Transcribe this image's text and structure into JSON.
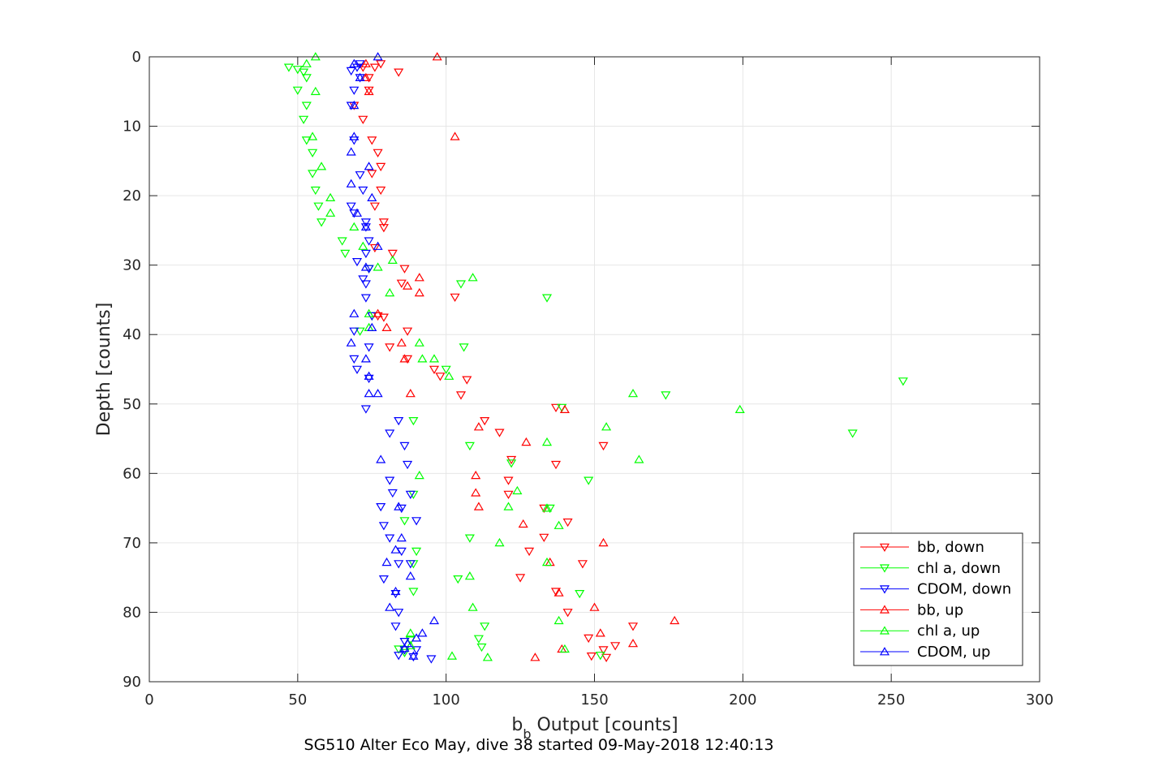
{
  "chart_data": {
    "type": "scatter",
    "title": "SG510 Alter Eco May, dive 38 started 09-May-2018 12:40:13",
    "xlabel_main": "b",
    "xlabel_sub": "b",
    "xlabel_rest": " Output [counts]",
    "ylabel": "Depth [counts]",
    "xlim": [
      0,
      300
    ],
    "ylim": [
      0,
      90
    ],
    "y_reversed": true,
    "grid": true,
    "legend_position": "bottom-right",
    "xticks": [
      "0",
      "50",
      "100",
      "150",
      "200",
      "250",
      "300"
    ],
    "yticks": [
      "0",
      "10",
      "20",
      "30",
      "40",
      "50",
      "60",
      "70",
      "80",
      "90"
    ],
    "series": [
      {
        "name": "bb, down",
        "color": "#ff0000",
        "marker": "triangle-down",
        "points": [
          [
            78,
            1
          ],
          [
            76,
            1.5
          ],
          [
            72,
            1.5
          ],
          [
            84,
            2.2
          ],
          [
            74,
            3
          ],
          [
            74,
            4.8
          ],
          [
            69,
            7
          ],
          [
            72,
            9
          ],
          [
            75,
            12
          ],
          [
            77,
            13.8
          ],
          [
            78,
            15.8
          ],
          [
            75,
            16.8
          ],
          [
            78,
            19.2
          ],
          [
            76,
            21.5
          ],
          [
            79,
            23.8
          ],
          [
            79,
            24.6
          ],
          [
            76,
            27.5
          ],
          [
            82,
            28.3
          ],
          [
            86,
            30.5
          ],
          [
            85,
            32.6
          ],
          [
            103,
            34.6
          ],
          [
            77,
            37.3
          ],
          [
            79,
            37.5
          ],
          [
            87,
            39.5
          ],
          [
            81,
            41.8
          ],
          [
            87,
            43.5
          ],
          [
            96,
            45
          ],
          [
            98,
            46
          ],
          [
            107,
            46.5
          ],
          [
            105,
            48.7
          ],
          [
            137,
            50.5
          ],
          [
            113,
            52.4
          ],
          [
            118,
            54.1
          ],
          [
            153,
            56
          ],
          [
            122,
            58
          ],
          [
            137,
            58.7
          ],
          [
            121,
            61
          ],
          [
            121,
            63
          ],
          [
            133,
            65
          ],
          [
            141,
            67
          ],
          [
            133,
            69.2
          ],
          [
            128,
            71.2
          ],
          [
            146,
            73
          ],
          [
            137,
            77
          ],
          [
            125,
            75
          ],
          [
            141,
            80
          ],
          [
            148,
            83.7
          ],
          [
            157,
            84.8
          ],
          [
            163,
            82
          ],
          [
            153,
            85.4
          ],
          [
            149,
            86.3
          ],
          [
            154,
            86.5
          ]
        ]
      },
      {
        "name": "chl a, down",
        "color": "#00ff00",
        "marker": "triangle-down",
        "points": [
          [
            47,
            1.5
          ],
          [
            50,
            1.8
          ],
          [
            52,
            2.2
          ],
          [
            53,
            3
          ],
          [
            50,
            4.8
          ],
          [
            53,
            7
          ],
          [
            52,
            9
          ],
          [
            53,
            12
          ],
          [
            55,
            13.8
          ],
          [
            55,
            16.8
          ],
          [
            56,
            19.2
          ],
          [
            57,
            21.5
          ],
          [
            58,
            23.8
          ],
          [
            65,
            26.5
          ],
          [
            66,
            28.3
          ],
          [
            74,
            30.5
          ],
          [
            105,
            32.7
          ],
          [
            134,
            34.7
          ],
          [
            75,
            37.3
          ],
          [
            71,
            39.5
          ],
          [
            106,
            41.8
          ],
          [
            100,
            45
          ],
          [
            139,
            50.5
          ],
          [
            174,
            48.7
          ],
          [
            237,
            54.2
          ],
          [
            254,
            46.7
          ],
          [
            89,
            52.4
          ],
          [
            108,
            56
          ],
          [
            122,
            58.5
          ],
          [
            148,
            61
          ],
          [
            89,
            63
          ],
          [
            135,
            65
          ],
          [
            86,
            66.8
          ],
          [
            108,
            69.3
          ],
          [
            90,
            71.2
          ],
          [
            89,
            73
          ],
          [
            104,
            75.2
          ],
          [
            145,
            77.3
          ],
          [
            89,
            77
          ],
          [
            113,
            82
          ],
          [
            111,
            83.8
          ],
          [
            112,
            85
          ],
          [
            152,
            86.2
          ],
          [
            84,
            85.3
          ],
          [
            86,
            85.8
          ],
          [
            88,
            84
          ]
        ]
      },
      {
        "name": "CDOM, down",
        "color": "#0000ff",
        "marker": "triangle-down",
        "points": [
          [
            71,
            1
          ],
          [
            70,
            1.5
          ],
          [
            68,
            2
          ],
          [
            71,
            3
          ],
          [
            69,
            4.8
          ],
          [
            68,
            7
          ],
          [
            69,
            12
          ],
          [
            71,
            17
          ],
          [
            72,
            19.2
          ],
          [
            68,
            21.5
          ],
          [
            69,
            22.5
          ],
          [
            73,
            23.8
          ],
          [
            73,
            24.5
          ],
          [
            74,
            26.5
          ],
          [
            73,
            28.3
          ],
          [
            70,
            29.5
          ],
          [
            74,
            30.5
          ],
          [
            72,
            32
          ],
          [
            73,
            32.7
          ],
          [
            73,
            34.7
          ],
          [
            75,
            37.3
          ],
          [
            69,
            39.5
          ],
          [
            74,
            41.8
          ],
          [
            69,
            43.5
          ],
          [
            70,
            45
          ],
          [
            74,
            46.3
          ],
          [
            73,
            50.7
          ],
          [
            84,
            52.4
          ],
          [
            81,
            54.2
          ],
          [
            86,
            56
          ],
          [
            87,
            58.7
          ],
          [
            81,
            61
          ],
          [
            82,
            62.8
          ],
          [
            88,
            63
          ],
          [
            78,
            64.8
          ],
          [
            85,
            65
          ],
          [
            90,
            66.8
          ],
          [
            79,
            67.5
          ],
          [
            81,
            69.3
          ],
          [
            85,
            71.2
          ],
          [
            84,
            73
          ],
          [
            88,
            73
          ],
          [
            79,
            75.2
          ],
          [
            83,
            77.3
          ],
          [
            84,
            80
          ],
          [
            83,
            82
          ],
          [
            86,
            84.2
          ],
          [
            86,
            85.4
          ],
          [
            90,
            85.4
          ],
          [
            84,
            86.2
          ],
          [
            89,
            86.4
          ],
          [
            95,
            86.7
          ]
        ]
      },
      {
        "name": "bb, up",
        "color": "#ff0000",
        "marker": "triangle-up",
        "points": [
          [
            97,
            0
          ],
          [
            73,
            1
          ],
          [
            73,
            3
          ],
          [
            74,
            5
          ],
          [
            103,
            11.5
          ],
          [
            87,
            33
          ],
          [
            91,
            31.8
          ],
          [
            91,
            34
          ],
          [
            77,
            37
          ],
          [
            80,
            39
          ],
          [
            85,
            41.2
          ],
          [
            86,
            43.5
          ],
          [
            88,
            48.5
          ],
          [
            140,
            50.8
          ],
          [
            111,
            53.3
          ],
          [
            127,
            55.5
          ],
          [
            110,
            60.3
          ],
          [
            110,
            62.8
          ],
          [
            111,
            64.8
          ],
          [
            126,
            67.3
          ],
          [
            135,
            72.8
          ],
          [
            150,
            79.3
          ],
          [
            153,
            70
          ],
          [
            177,
            81.2
          ],
          [
            152,
            83
          ],
          [
            163,
            84.5
          ],
          [
            139,
            85.3
          ],
          [
            130,
            86.5
          ],
          [
            138,
            77.2
          ]
        ]
      },
      {
        "name": "chl a, up",
        "color": "#00ff00",
        "marker": "triangle-up",
        "points": [
          [
            56,
            0
          ],
          [
            53,
            1
          ],
          [
            56,
            5
          ],
          [
            55,
            11.5
          ],
          [
            58,
            15.8
          ],
          [
            61,
            20.3
          ],
          [
            61,
            22.5
          ],
          [
            69,
            24.5
          ],
          [
            72,
            27.3
          ],
          [
            82,
            29.3
          ],
          [
            81,
            34
          ],
          [
            74,
            37
          ],
          [
            74,
            39
          ],
          [
            91,
            41.2
          ],
          [
            92,
            43.5
          ],
          [
            96,
            43.5
          ],
          [
            101,
            46
          ],
          [
            163,
            48.5
          ],
          [
            199,
            50.8
          ],
          [
            154,
            53.3
          ],
          [
            134,
            55.5
          ],
          [
            165,
            58
          ],
          [
            91,
            60.3
          ],
          [
            124,
            62.5
          ],
          [
            121,
            64.8
          ],
          [
            134,
            65
          ],
          [
            138,
            67.5
          ],
          [
            118,
            70
          ],
          [
            134,
            72.8
          ],
          [
            108,
            74.8
          ],
          [
            109,
            79.3
          ],
          [
            138,
            81.2
          ],
          [
            88,
            83
          ],
          [
            140,
            85.3
          ],
          [
            102,
            86.3
          ],
          [
            114,
            86.5
          ],
          [
            88,
            84.8
          ],
          [
            109,
            31.8
          ],
          [
            77,
            30.3
          ]
        ]
      },
      {
        "name": "CDOM, up",
        "color": "#0000ff",
        "marker": "triangle-up",
        "points": [
          [
            77,
            0
          ],
          [
            69,
            1
          ],
          [
            71,
            3
          ],
          [
            69,
            7
          ],
          [
            69,
            11.5
          ],
          [
            68,
            13.7
          ],
          [
            74,
            15.8
          ],
          [
            68,
            18.3
          ],
          [
            75,
            20.3
          ],
          [
            70,
            22.5
          ],
          [
            73,
            24.5
          ],
          [
            77,
            27.3
          ],
          [
            73,
            30.3
          ],
          [
            69,
            37
          ],
          [
            75,
            39
          ],
          [
            68,
            41.2
          ],
          [
            73,
            43.5
          ],
          [
            74,
            46
          ],
          [
            74,
            48.5
          ],
          [
            77,
            48.5
          ],
          [
            80,
            72.8
          ],
          [
            85,
            69.3
          ],
          [
            83,
            77
          ],
          [
            81,
            79.3
          ],
          [
            96,
            81.2
          ],
          [
            92,
            83
          ],
          [
            90,
            83.7
          ],
          [
            87,
            84.5
          ],
          [
            86,
            85.2
          ],
          [
            89,
            86.3
          ],
          [
            83,
            71
          ],
          [
            88,
            74.8
          ],
          [
            78,
            58
          ],
          [
            84,
            64.8
          ]
        ]
      }
    ]
  }
}
